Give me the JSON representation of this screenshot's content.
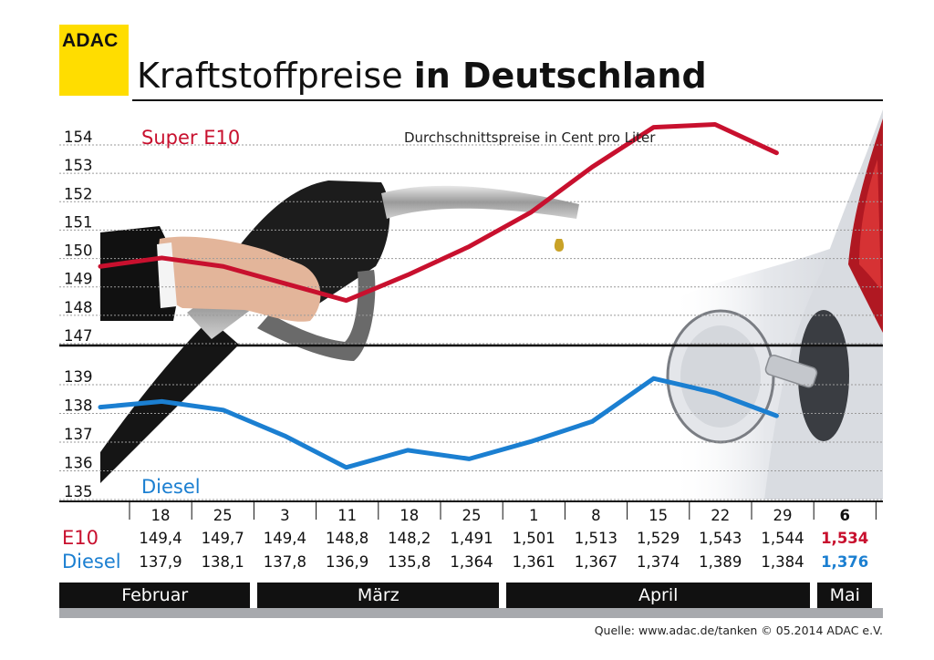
{
  "brand": "ADAC",
  "title": {
    "light": "Kraftstoffpreise",
    "bold": "in Deutschland"
  },
  "subtitle": "Durchschnittspreise in Cent pro Liter",
  "colors": {
    "e10": "#c8102e",
    "diesel": "#1b7fd1",
    "brand": "#ffdd00"
  },
  "chart_data": {
    "type": "line",
    "title": "Kraftstoffpreise in Deutschland",
    "subtitle": "Durchschnittspreise in Cent pro Liter",
    "categories": [
      "18",
      "25",
      "3",
      "11",
      "18",
      "25",
      "1",
      "8",
      "15",
      "22",
      "29",
      "6"
    ],
    "months": [
      {
        "label": "Februar",
        "span": 2
      },
      {
        "label": "März",
        "span": 4
      },
      {
        "label": "April",
        "span": 5
      },
      {
        "label": "Mai",
        "span": 1
      }
    ],
    "series": [
      {
        "name": "Super E10",
        "row_label": "E10",
        "color": "#c8102e",
        "values": [
          149.4,
          149.7,
          149.4,
          148.8,
          148.2,
          149.1,
          150.1,
          151.3,
          152.9,
          154.3,
          154.4,
          153.4
        ],
        "labels": [
          "149,4",
          "149,7",
          "149,4",
          "148,8",
          "148,2",
          "1,491",
          "1,501",
          "1,513",
          "1,529",
          "1,543",
          "1,544",
          "1,534"
        ],
        "ylim": [
          147,
          154
        ],
        "yticks": [
          154,
          153,
          152,
          151,
          150,
          149,
          148,
          147
        ]
      },
      {
        "name": "Diesel",
        "row_label": "Diesel",
        "color": "#1b7fd1",
        "values": [
          137.9,
          138.1,
          137.8,
          136.9,
          135.8,
          136.4,
          136.1,
          136.7,
          137.4,
          138.9,
          138.4,
          137.6
        ],
        "labels": [
          "137,9",
          "138,1",
          "137,8",
          "136,9",
          "135,8",
          "1,364",
          "1,361",
          "1,367",
          "1,374",
          "1,389",
          "1,384",
          "1,376"
        ],
        "ylim": [
          135,
          139
        ],
        "yticks": [
          139,
          138,
          137,
          136,
          135
        ]
      }
    ],
    "grid": true
  },
  "source": "Quelle: www.adac.de/tanken  © 05.2014  ADAC e.V."
}
